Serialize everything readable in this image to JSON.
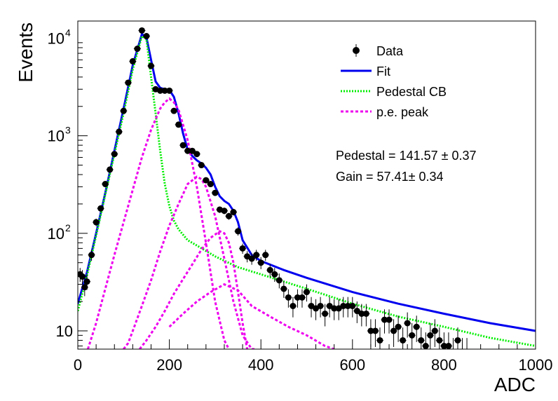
{
  "chart_data": {
    "type": "scatter",
    "xlabel": "ADC",
    "ylabel": "Events",
    "xlim": [
      0,
      1000
    ],
    "ylim": [
      6.5,
      15000
    ],
    "yscale": "log",
    "x_ticks": [
      "0",
      "200",
      "400",
      "600",
      "800",
      "1000"
    ],
    "y_ticks": [
      {
        "value": 10,
        "label": "10",
        "sup": ""
      },
      {
        "value": 100,
        "label": "10",
        "sup": "2"
      },
      {
        "value": 1000,
        "label": "10",
        "sup": "3"
      },
      {
        "value": 10000,
        "label": "10",
        "sup": "4"
      }
    ],
    "legend": {
      "position": "top-right",
      "entries": [
        {
          "label": "Data",
          "style": "marker",
          "color": "#000000"
        },
        {
          "label": "Fit",
          "style": "solid",
          "color": "#0000ee"
        },
        {
          "label": "Pedestal CB",
          "style": "dotted",
          "color": "#00ee00"
        },
        {
          "label": "p.e. peak",
          "style": "dashed",
          "color": "#ee00ee"
        }
      ]
    },
    "annotations": [
      "Pedestal = 141.57 ± 0.37",
      "Gain = 57.41± 0.34"
    ],
    "series": [
      {
        "name": "Data",
        "kind": "points",
        "color": "#000000",
        "x": [
          5,
          10,
          15,
          20,
          30,
          40,
          50,
          60,
          70,
          80,
          90,
          100,
          110,
          120,
          130,
          140,
          150,
          160,
          170,
          180,
          190,
          200,
          210,
          220,
          230,
          240,
          250,
          260,
          270,
          280,
          290,
          300,
          310,
          320,
          330,
          340,
          350,
          360,
          370,
          380,
          390,
          400,
          410,
          420,
          430,
          440,
          450,
          460,
          470,
          480,
          490,
          500,
          510,
          520,
          530,
          540,
          550,
          560,
          570,
          580,
          590,
          600,
          610,
          620,
          630,
          640,
          650,
          660,
          670,
          680,
          690,
          700,
          710,
          720,
          730,
          740,
          750,
          760,
          770,
          780,
          790,
          800,
          810,
          820,
          830,
          840,
          850
        ],
        "y": [
          38,
          36,
          28,
          32,
          60,
          130,
          180,
          320,
          450,
          650,
          1100,
          1800,
          3500,
          5800,
          7800,
          12000,
          10500,
          5200,
          3000,
          2900,
          2900,
          2900,
          1800,
          1300,
          800,
          700,
          700,
          650,
          500,
          350,
          320,
          260,
          175,
          170,
          150,
          165,
          105,
          70,
          58,
          55,
          60,
          50,
          60,
          42,
          38,
          33,
          27,
          22,
          18,
          22,
          22,
          25,
          18,
          17,
          18,
          15,
          18,
          17,
          17,
          18,
          18,
          18,
          16,
          15,
          15,
          10,
          10,
          8,
          13,
          13,
          10,
          11,
          8,
          12,
          9,
          11,
          8,
          7,
          9,
          10,
          8,
          7,
          7,
          6,
          8,
          6,
          6
        ]
      },
      {
        "name": "Fit",
        "kind": "line",
        "style": "solid",
        "color": "#0000ee",
        "x": [
          0,
          20,
          40,
          60,
          80,
          100,
          120,
          140,
          150,
          160,
          170,
          180,
          190,
          200,
          210,
          220,
          230,
          240,
          250,
          260,
          270,
          280,
          290,
          300,
          310,
          320,
          330,
          340,
          350,
          360,
          380,
          400,
          450,
          500,
          600,
          700,
          800,
          900,
          1000
        ],
        "y": [
          19,
          40,
          100,
          260,
          700,
          1900,
          5300,
          11000,
          10200,
          6000,
          3600,
          3100,
          3000,
          2950,
          2500,
          1700,
          1050,
          720,
          620,
          560,
          520,
          470,
          400,
          300,
          240,
          215,
          200,
          170,
          130,
          85,
          60,
          52,
          42,
          35,
          25,
          19,
          15,
          12,
          10
        ]
      },
      {
        "name": "Pedestal CB",
        "kind": "line",
        "style": "dotted",
        "color": "#00ee00",
        "x": [
          0,
          20,
          40,
          60,
          80,
          100,
          120,
          140,
          150,
          160,
          170,
          180,
          190,
          200,
          210,
          220,
          240,
          260,
          280,
          300,
          350,
          400,
          500,
          600,
          700,
          800,
          900,
          1000
        ],
        "y": [
          16,
          37,
          95,
          250,
          650,
          1700,
          4800,
          10500,
          9800,
          4000,
          1700,
          700,
          320,
          190,
          135,
          110,
          85,
          75,
          66,
          58,
          45,
          38,
          27,
          19,
          14,
          11,
          8.5,
          7
        ]
      },
      {
        "name": "p.e. peak 1",
        "kind": "line",
        "style": "dashed",
        "color": "#ee00ee",
        "x": [
          22,
          40,
          60,
          80,
          100,
          120,
          140,
          160,
          180,
          190,
          200,
          210,
          220,
          240,
          260,
          280,
          300,
          320,
          330
        ],
        "y": [
          6.5,
          12,
          27,
          60,
          130,
          280,
          600,
          1150,
          1900,
          2200,
          2400,
          2200,
          1850,
          900,
          300,
          80,
          20,
          8,
          6.5
        ]
      },
      {
        "name": "p.e. peak 2",
        "kind": "line",
        "style": "dashed",
        "color": "#ee00ee",
        "x": [
          100,
          110,
          120,
          140,
          160,
          180,
          200,
          220,
          240,
          260,
          270,
          280,
          300,
          320,
          340,
          360,
          380,
          390
        ],
        "y": [
          6.5,
          7.5,
          10,
          18,
          33,
          65,
          120,
          200,
          320,
          380,
          360,
          300,
          150,
          55,
          20,
          9,
          6.5,
          6.5
        ]
      },
      {
        "name": "p.e. peak 3",
        "kind": "line",
        "style": "dashed",
        "color": "#ee00ee",
        "x": [
          135,
          150,
          170,
          190,
          210,
          230,
          250,
          270,
          290,
          310,
          320,
          330,
          340,
          350,
          360,
          370
        ],
        "y": [
          6.5,
          8,
          11,
          16,
          24,
          34,
          48,
          68,
          90,
          105,
          100,
          80,
          50,
          25,
          12,
          6.5
        ]
      },
      {
        "name": "p.e. peak 4",
        "kind": "line",
        "style": "dashed",
        "color": "#ee00ee",
        "x": [
          200,
          230,
          260,
          290,
          320,
          350,
          380,
          420,
          460,
          500,
          540,
          560
        ],
        "y": [
          11,
          15,
          20,
          25,
          30,
          26,
          18,
          14,
          11,
          9,
          7,
          6.5
        ]
      }
    ]
  }
}
